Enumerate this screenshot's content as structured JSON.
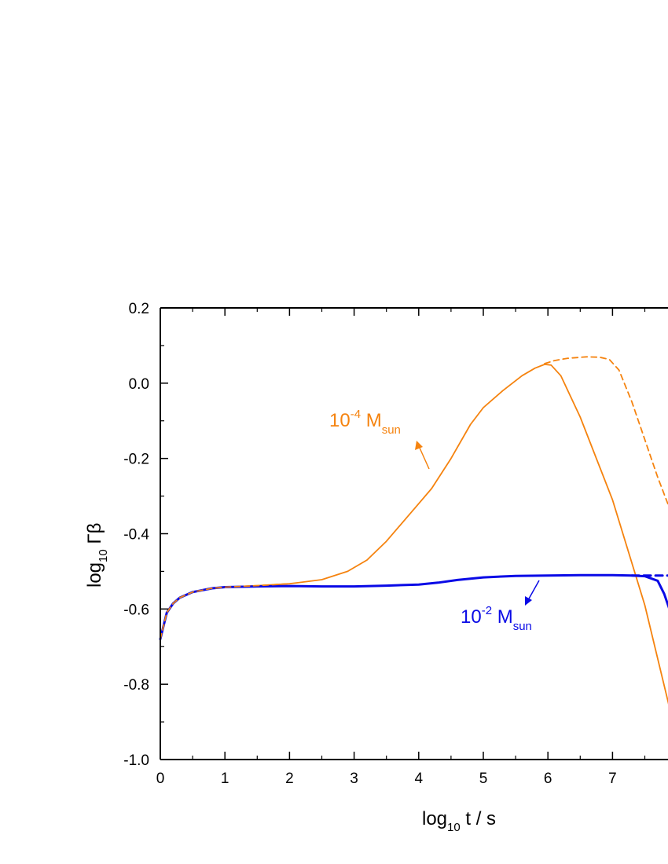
{
  "chart_data": {
    "type": "line",
    "title": "",
    "xlabel": {
      "base": "log",
      "sub": "10",
      "rest": " t / s"
    },
    "ylabel": {
      "base": "log",
      "sub": "10",
      "rest": " Γβ"
    },
    "xlim": [
      0,
      7.9
    ],
    "ylim": [
      -1.0,
      0.2
    ],
    "x_ticks": [
      "0",
      "1",
      "2",
      "3",
      "4",
      "5",
      "6",
      "7"
    ],
    "y_ticks": [
      "0.2",
      "0.0",
      "-0.2",
      "-0.4",
      "-0.6",
      "-0.8",
      "-1.0"
    ],
    "grid": false,
    "colors": {
      "orange": "#f5830f",
      "blue": "#0a0ae6"
    },
    "series": [
      {
        "label_ref": "ann_orange",
        "style": "solid",
        "color": "orange",
        "x": [
          0,
          0.1,
          0.2,
          0.3,
          0.5,
          0.8,
          1.0,
          1.5,
          2.0,
          2.5,
          2.9,
          3.2,
          3.5,
          3.8,
          4.0,
          4.2,
          4.5,
          4.8,
          5.0,
          5.3,
          5.6,
          5.8,
          5.95,
          6.05,
          6.2,
          6.5,
          7.0,
          7.5,
          7.9
        ],
        "y": [
          -0.68,
          -0.61,
          -0.585,
          -0.57,
          -0.555,
          -0.545,
          -0.542,
          -0.538,
          -0.533,
          -0.522,
          -0.5,
          -0.47,
          -0.42,
          -0.36,
          -0.32,
          -0.28,
          -0.2,
          -0.11,
          -0.065,
          -0.02,
          0.02,
          0.04,
          0.05,
          0.048,
          0.02,
          -0.09,
          -0.31,
          -0.59,
          -0.875
        ]
      },
      {
        "label_ref": "ann_orange",
        "style": "dashed",
        "color": "orange",
        "x": [
          5.95,
          6.1,
          6.3,
          6.6,
          6.8,
          6.95,
          7.1,
          7.3,
          7.5,
          7.7,
          7.9
        ],
        "y": [
          0.052,
          0.06,
          0.066,
          0.07,
          0.069,
          0.063,
          0.035,
          -0.05,
          -0.15,
          -0.25,
          -0.34
        ]
      },
      {
        "label_ref": "ann_blue",
        "style": "solid",
        "color": "blue",
        "x": [
          0,
          0.1,
          0.2,
          0.3,
          0.5,
          0.8,
          1.0,
          1.5,
          2.0,
          2.5,
          3.0,
          3.5,
          4.0,
          4.3,
          4.6,
          5.0,
          5.5,
          6.0,
          6.5,
          7.0,
          7.3,
          7.5,
          7.7,
          7.8,
          7.9
        ],
        "y": [
          -0.68,
          -0.61,
          -0.585,
          -0.57,
          -0.555,
          -0.545,
          -0.542,
          -0.54,
          -0.539,
          -0.54,
          -0.54,
          -0.538,
          -0.535,
          -0.53,
          -0.523,
          -0.516,
          -0.512,
          -0.511,
          -0.51,
          -0.51,
          -0.511,
          -0.513,
          -0.525,
          -0.56,
          -0.61
        ]
      },
      {
        "label_ref": "ann_blue",
        "style": "dashed",
        "color": "blue",
        "x": [
          7.3,
          7.5,
          7.7,
          7.9
        ],
        "y": [
          -0.511,
          -0.511,
          -0.511,
          -0.511
        ]
      },
      {
        "label_ref": "ann_orange",
        "style": "dashed",
        "color": "orange",
        "x": [
          0,
          0.1,
          0.2,
          0.3,
          0.5,
          0.8,
          1.0,
          1.5,
          2.0
        ],
        "y": [
          -0.68,
          -0.61,
          -0.585,
          -0.57,
          -0.555,
          -0.545,
          -0.542,
          -0.538,
          -0.533
        ]
      }
    ],
    "annotations": {
      "ann_orange": {
        "base": "10",
        "sup": "-4",
        "unit": " M",
        "sub": "sun",
        "color": "orange"
      },
      "ann_blue": {
        "base": "10",
        "sup": "-2",
        "unit": " M",
        "sub": "sun",
        "color": "blue"
      }
    }
  }
}
